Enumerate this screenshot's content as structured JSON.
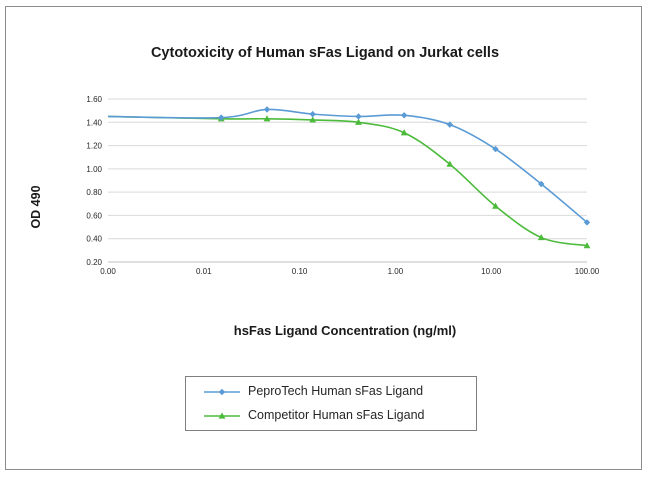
{
  "chart_data": {
    "type": "line",
    "title": "Cytotoxicity of Human sFas Ligand on Jurkat cells",
    "xlabel": "hsFas Ligand Concentration (ng/ml)",
    "ylabel": "OD 490",
    "x_scale": "log",
    "x_ticks": [
      "0.00",
      "0.01",
      "0.10",
      "1.00",
      "10.00",
      "100.00"
    ],
    "y_ticks": [
      "0.20",
      "0.40",
      "0.60",
      "0.80",
      "1.00",
      "1.20",
      "1.40",
      "1.60"
    ],
    "ylim": [
      0.2,
      1.6
    ],
    "grid": "horizontal",
    "legend_position": "bottom",
    "series": [
      {
        "name": "PeproTech Human sFas Ligand",
        "color": "#5b9bd5",
        "marker": "diamond",
        "x": [
          0.001,
          0.0152,
          0.0457,
          0.137,
          0.412,
          1.235,
          3.7,
          11.1,
          33.3,
          100
        ],
        "y": [
          1.45,
          1.44,
          1.51,
          1.47,
          1.45,
          1.46,
          1.38,
          1.17,
          0.87,
          0.54
        ]
      },
      {
        "name": "Competitor Human sFas Ligand",
        "color": "#4cbb3c",
        "marker": "triangle",
        "x": [
          0.001,
          0.0152,
          0.0457,
          0.137,
          0.412,
          1.235,
          3.7,
          11.1,
          33.3,
          100
        ],
        "y": [
          1.45,
          1.43,
          1.43,
          1.42,
          1.4,
          1.31,
          1.04,
          0.68,
          0.41,
          0.34
        ]
      }
    ]
  }
}
